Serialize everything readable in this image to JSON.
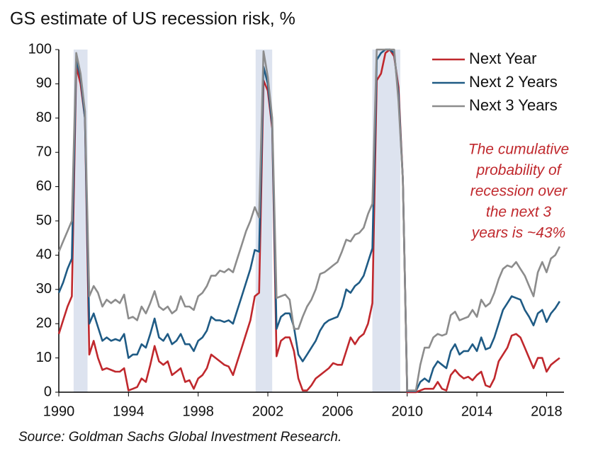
{
  "chart_data": {
    "type": "line",
    "title": "GS estimate of US recession risk, %",
    "source": "Source: Goldman Sachs Global Investment Research.",
    "annotation": [
      "The cumulative",
      "probability of",
      "recession over",
      "the next 3",
      "years is ~43%"
    ],
    "annotation_color": "#c0282d",
    "shading": [
      [
        1990.85,
        1991.65
      ],
      [
        2001.3,
        2002.25
      ],
      [
        2008.0,
        2009.6
      ]
    ],
    "shading_color": "#dde3ef",
    "legend": "top-right",
    "grid": false,
    "xlim": [
      1990,
      2019
    ],
    "xticks": [
      1990,
      1994,
      1998,
      2002,
      2006,
      2010,
      2014,
      2018
    ],
    "ylim": [
      0,
      100
    ],
    "yticks": [
      0,
      10,
      20,
      30,
      40,
      50,
      60,
      70,
      80,
      90,
      100
    ],
    "x": [
      1990,
      1990.25,
      1990.5,
      1990.75,
      1991,
      1991.25,
      1991.5,
      1991.75,
      1992,
      1992.25,
      1992.5,
      1992.75,
      1993,
      1993.25,
      1993.5,
      1993.75,
      1994,
      1994.25,
      1994.5,
      1994.75,
      1995,
      1995.25,
      1995.5,
      1995.75,
      1996,
      1996.25,
      1996.5,
      1996.75,
      1997,
      1997.25,
      1997.5,
      1997.75,
      1998,
      1998.25,
      1998.5,
      1998.75,
      1999,
      1999.25,
      1999.5,
      1999.75,
      2000,
      2000.25,
      2000.5,
      2000.75,
      2001,
      2001.25,
      2001.5,
      2001.75,
      2002,
      2002.25,
      2002.5,
      2002.75,
      2003,
      2003.25,
      2003.5,
      2003.75,
      2004,
      2004.25,
      2004.5,
      2004.75,
      2005,
      2005.25,
      2005.5,
      2005.75,
      2006,
      2006.25,
      2006.5,
      2006.75,
      2007,
      2007.25,
      2007.5,
      2007.75,
      2008,
      2008.25,
      2008.5,
      2008.75,
      2009,
      2009.25,
      2009.5,
      2009.75,
      2010,
      2010.25,
      2010.5,
      2010.75,
      2011,
      2011.25,
      2011.5,
      2011.75,
      2012,
      2012.25,
      2012.5,
      2012.75,
      2013,
      2013.25,
      2013.5,
      2013.75,
      2014,
      2014.25,
      2014.5,
      2014.75,
      2015,
      2015.25,
      2015.5,
      2015.75,
      2016,
      2016.25,
      2016.5,
      2016.75,
      2017,
      2017.25,
      2017.5,
      2017.75,
      2018,
      2018.25,
      2018.5,
      2018.75
    ],
    "series": [
      {
        "name": "Next Year",
        "color": "#c0282d",
        "values": [
          17,
          21,
          25,
          28,
          95,
          90,
          80,
          11,
          15,
          10,
          6.5,
          7,
          6.5,
          6,
          6,
          7,
          0.5,
          1,
          1.5,
          4,
          3,
          8,
          13.5,
          9,
          8,
          9,
          5,
          6,
          7,
          3,
          3.5,
          1,
          4,
          5,
          7,
          11,
          10,
          9,
          8,
          7.5,
          5,
          9,
          13,
          17,
          21,
          28,
          29,
          91,
          88,
          77,
          10.5,
          15,
          16,
          16,
          12,
          4,
          0.5,
          0.5,
          2,
          4,
          5,
          6,
          7,
          8.5,
          8,
          8,
          12,
          16,
          14,
          16,
          17,
          20,
          26,
          91,
          93,
          99,
          100,
          98,
          89,
          62,
          0,
          0,
          0,
          0.5,
          1,
          1,
          1,
          3,
          1,
          0.5,
          5,
          6.5,
          5,
          4,
          4.5,
          3.5,
          5,
          6,
          2,
          1.5,
          4,
          9,
          11,
          13,
          16.5,
          17,
          16,
          13,
          10,
          7,
          10,
          10,
          6,
          8,
          9,
          10
        ]
      },
      {
        "name": "Next 2 Years",
        "color": "#1f5b85",
        "values": [
          29,
          32,
          36,
          39,
          97,
          92,
          80,
          20,
          23,
          19,
          15,
          16,
          15,
          15.5,
          15,
          17,
          10,
          11,
          11,
          14,
          13,
          17,
          21.5,
          16,
          15,
          17,
          14,
          15,
          17,
          14,
          14,
          12,
          15,
          16,
          18,
          22,
          21,
          21,
          20.5,
          21,
          20,
          24,
          28,
          32,
          36,
          41.5,
          41,
          95,
          90,
          78,
          18.5,
          22,
          23,
          23,
          19,
          11,
          9,
          11,
          13,
          15,
          18,
          20,
          21,
          21.5,
          22,
          25,
          30,
          29,
          31,
          32,
          34,
          38,
          42,
          97,
          99,
          100,
          100,
          99,
          87,
          62,
          0.3,
          0.3,
          0.3,
          3,
          4,
          3,
          7,
          9,
          8,
          7,
          12,
          14,
          11,
          12,
          12,
          14,
          12,
          16,
          12.5,
          13,
          16,
          20,
          24,
          26,
          28,
          27.5,
          27,
          24,
          22,
          19.5,
          23,
          24,
          20.5,
          23,
          24.5,
          26.5
        ]
      },
      {
        "name": "Next 3 Years",
        "color": "#8c8c8c",
        "values": [
          41,
          44,
          47,
          50,
          99,
          93,
          82,
          28,
          31,
          29,
          25,
          27,
          26,
          27,
          26,
          28.5,
          21.5,
          22,
          21,
          25,
          23,
          26,
          29.5,
          25,
          24,
          25,
          23,
          24,
          28,
          25,
          25,
          24,
          28,
          29,
          31,
          34,
          34,
          35.5,
          35,
          36,
          35,
          39,
          43,
          47,
          50,
          54,
          51,
          99.5,
          92,
          80,
          27.5,
          28,
          28.5,
          27,
          18.5,
          18.5,
          22,
          25,
          27,
          30,
          34.5,
          35,
          36,
          37,
          38,
          41,
          44.5,
          44,
          46,
          46.5,
          48,
          52,
          55,
          100,
          100,
          100,
          100,
          100,
          85,
          62,
          0.5,
          0.5,
          0.5,
          8,
          13,
          13,
          16,
          17,
          16.5,
          17,
          22.5,
          23.5,
          21,
          21.5,
          22,
          24,
          22,
          27,
          25,
          26,
          29,
          33,
          36,
          37,
          36.5,
          38,
          36,
          34,
          31,
          28,
          35,
          38,
          35,
          39,
          40,
          42.5
        ]
      }
    ]
  }
}
